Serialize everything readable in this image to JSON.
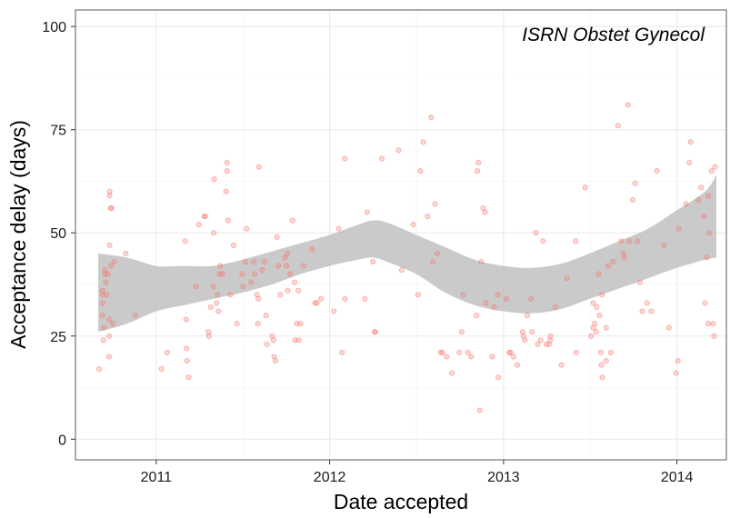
{
  "chart_data": {
    "type": "scatter",
    "title": "",
    "annotation": "ISRN Obstet Gynecol",
    "xlabel": "Date accepted",
    "ylabel": "Acceptance delay (days)",
    "xlim": [
      "2010-07-15",
      "2014-04-15"
    ],
    "ylim": [
      -5,
      104
    ],
    "x_ticks": [
      "2011-01-01",
      "2012-01-01",
      "2013-01-01",
      "2014-01-01"
    ],
    "x_tick_labels": [
      "2011",
      "2012",
      "2013",
      "2014"
    ],
    "y_ticks": [
      0,
      25,
      50,
      75,
      100
    ],
    "y_tick_labels": [
      "0",
      "25",
      "50",
      "75",
      "100"
    ],
    "grid": true,
    "colors": {
      "points": "#f8766d",
      "band": "#c0c0c0",
      "panel_border": "#7f7f7f",
      "grid": "#ebebeb"
    },
    "series": [
      {
        "points": [
          [
            "2010-09-03",
            17
          ],
          [
            "2010-09-10",
            36
          ],
          [
            "2010-09-10",
            35
          ],
          [
            "2010-09-10",
            33
          ],
          [
            "2010-09-10",
            30
          ],
          [
            "2010-09-12",
            24
          ],
          [
            "2010-09-13",
            27
          ],
          [
            "2010-09-15",
            40
          ],
          [
            "2010-09-15",
            41
          ],
          [
            "2010-09-17",
            38
          ],
          [
            "2010-09-19",
            35
          ],
          [
            "2010-09-21",
            40
          ],
          [
            "2010-09-25",
            60
          ],
          [
            "2010-09-25",
            59
          ],
          [
            "2010-09-25",
            47
          ],
          [
            "2010-09-27",
            56
          ],
          [
            "2010-09-28",
            42
          ],
          [
            "2010-09-29",
            56
          ],
          [
            "2010-09-24",
            29
          ],
          [
            "2010-09-24",
            25
          ],
          [
            "2010-09-24",
            20
          ],
          [
            "2010-10-05",
            43
          ],
          [
            "2010-10-02",
            28
          ],
          [
            "2010-10-29",
            45
          ],
          [
            "2010-11-18",
            30
          ],
          [
            "2011-01-12",
            17
          ],
          [
            "2011-01-24",
            21
          ],
          [
            "2011-03-03",
            48
          ],
          [
            "2011-03-05",
            29
          ],
          [
            "2011-03-06",
            22
          ],
          [
            "2011-03-07",
            19
          ],
          [
            "2011-03-10",
            15
          ],
          [
            "2011-03-26",
            37
          ],
          [
            "2011-04-01",
            52
          ],
          [
            "2011-04-12",
            54
          ],
          [
            "2011-04-14",
            54
          ],
          [
            "2011-04-21",
            26
          ],
          [
            "2011-04-22",
            25
          ],
          [
            "2011-04-26",
            32
          ],
          [
            "2011-05-01",
            37
          ],
          [
            "2011-05-02",
            50
          ],
          [
            "2011-05-03",
            63
          ],
          [
            "2011-05-08",
            33
          ],
          [
            "2011-05-12",
            31
          ],
          [
            "2011-05-10",
            35
          ],
          [
            "2011-05-14",
            40
          ],
          [
            "2011-05-16",
            42
          ],
          [
            "2011-05-20",
            40
          ],
          [
            "2011-05-28",
            60
          ],
          [
            "2011-05-30",
            65
          ],
          [
            "2011-05-30",
            67
          ],
          [
            "2011-06-01",
            53
          ],
          [
            "2011-06-06",
            35
          ],
          [
            "2011-06-13",
            47
          ],
          [
            "2011-06-20",
            28
          ],
          [
            "2011-07-01",
            40
          ],
          [
            "2011-07-03",
            37
          ],
          [
            "2011-07-08",
            43
          ],
          [
            "2011-07-10",
            51
          ],
          [
            "2011-07-20",
            38
          ],
          [
            "2011-07-25",
            43
          ],
          [
            "2011-07-27",
            40
          ],
          [
            "2011-08-01",
            35
          ],
          [
            "2011-08-04",
            34
          ],
          [
            "2011-08-03",
            28
          ],
          [
            "2011-08-05",
            66
          ],
          [
            "2011-08-12",
            41
          ],
          [
            "2011-08-17",
            43
          ],
          [
            "2011-08-20",
            30
          ],
          [
            "2011-08-22",
            23
          ],
          [
            "2011-09-02",
            25
          ],
          [
            "2011-09-05",
            24
          ],
          [
            "2011-09-06",
            20
          ],
          [
            "2011-09-09",
            19
          ],
          [
            "2011-09-12",
            49
          ],
          [
            "2011-09-15",
            42
          ],
          [
            "2011-09-19",
            35
          ],
          [
            "2011-09-29",
            44
          ],
          [
            "2011-10-02",
            42
          ],
          [
            "2011-10-04",
            45
          ],
          [
            "2011-10-05",
            36
          ],
          [
            "2011-10-10",
            40
          ],
          [
            "2011-10-15",
            53
          ],
          [
            "2011-10-19",
            38
          ],
          [
            "2011-10-20",
            24
          ],
          [
            "2011-10-24",
            28
          ],
          [
            "2011-10-27",
            36
          ],
          [
            "2011-10-28",
            24
          ],
          [
            "2011-11-01",
            28
          ],
          [
            "2011-11-07",
            42
          ],
          [
            "2011-11-25",
            46
          ],
          [
            "2011-12-01",
            33
          ],
          [
            "2011-12-05",
            33
          ],
          [
            "2011-12-14",
            34
          ],
          [
            "2012-01-10",
            31
          ],
          [
            "2012-01-20",
            51
          ],
          [
            "2012-01-27",
            21
          ],
          [
            "2012-02-02",
            68
          ],
          [
            "2012-02-02",
            34
          ],
          [
            "2012-03-15",
            34
          ],
          [
            "2012-03-20",
            55
          ],
          [
            "2012-04-01",
            43
          ],
          [
            "2012-04-05",
            26
          ],
          [
            "2012-04-06",
            26
          ],
          [
            "2012-04-20",
            68
          ],
          [
            "2012-05-25",
            70
          ],
          [
            "2012-06-01",
            41
          ],
          [
            "2012-06-25",
            52
          ],
          [
            "2012-07-05",
            35
          ],
          [
            "2012-07-10",
            65
          ],
          [
            "2012-07-16",
            72
          ],
          [
            "2012-07-25",
            54
          ],
          [
            "2012-08-02",
            78
          ],
          [
            "2012-08-05",
            43
          ],
          [
            "2012-08-10",
            57
          ],
          [
            "2012-08-15",
            45
          ],
          [
            "2012-08-22",
            21
          ],
          [
            "2012-08-25",
            21
          ],
          [
            "2012-09-03",
            20
          ],
          [
            "2012-09-14",
            16
          ],
          [
            "2012-09-30",
            21
          ],
          [
            "2012-10-05",
            26
          ],
          [
            "2012-10-08",
            35
          ],
          [
            "2012-10-18",
            21
          ],
          [
            "2012-10-25",
            20
          ],
          [
            "2012-11-05",
            30
          ],
          [
            "2012-11-07",
            65
          ],
          [
            "2012-11-09",
            67
          ],
          [
            "2012-11-12",
            7
          ],
          [
            "2012-11-15",
            43
          ],
          [
            "2012-11-19",
            56
          ],
          [
            "2012-11-23",
            55
          ],
          [
            "2012-11-25",
            33
          ],
          [
            "2012-12-08",
            20
          ],
          [
            "2012-12-12",
            32
          ],
          [
            "2012-12-20",
            35
          ],
          [
            "2012-12-21",
            15
          ],
          [
            "2013-01-07",
            34
          ],
          [
            "2013-01-13",
            21
          ],
          [
            "2013-01-16",
            21
          ],
          [
            "2013-01-22",
            20
          ],
          [
            "2013-01-30",
            18
          ],
          [
            "2013-02-10",
            26
          ],
          [
            "2013-02-12",
            25
          ],
          [
            "2013-02-15",
            24
          ],
          [
            "2013-02-20",
            30
          ],
          [
            "2013-02-28",
            34
          ],
          [
            "2013-03-02",
            26
          ],
          [
            "2013-03-10",
            50
          ],
          [
            "2013-03-14",
            23
          ],
          [
            "2013-03-20",
            24
          ],
          [
            "2013-03-25",
            48
          ],
          [
            "2013-04-01",
            23
          ],
          [
            "2013-04-07",
            23
          ],
          [
            "2013-04-09",
            24
          ],
          [
            "2013-04-10",
            25
          ],
          [
            "2013-04-20",
            32
          ],
          [
            "2013-05-03",
            18
          ],
          [
            "2013-05-15",
            39
          ],
          [
            "2013-06-02",
            48
          ],
          [
            "2013-06-03",
            21
          ],
          [
            "2013-06-22",
            61
          ],
          [
            "2013-07-04",
            25
          ],
          [
            "2013-07-09",
            27
          ],
          [
            "2013-07-09",
            33
          ],
          [
            "2013-07-12",
            28
          ],
          [
            "2013-07-15",
            26
          ],
          [
            "2013-07-16",
            32
          ],
          [
            "2013-07-20",
            40
          ],
          [
            "2013-07-22",
            30
          ],
          [
            "2013-07-25",
            21
          ],
          [
            "2013-07-26",
            18
          ],
          [
            "2013-07-27",
            35
          ],
          [
            "2013-07-28",
            15
          ],
          [
            "2013-08-05",
            27
          ],
          [
            "2013-08-05",
            19
          ],
          [
            "2013-08-09",
            42
          ],
          [
            "2013-08-15",
            21
          ],
          [
            "2013-08-20",
            43
          ],
          [
            "2013-08-30",
            76
          ],
          [
            "2013-09-06",
            48
          ],
          [
            "2013-09-10",
            45
          ],
          [
            "2013-09-12",
            44
          ],
          [
            "2013-09-20",
            81
          ],
          [
            "2013-09-23",
            48
          ],
          [
            "2013-09-30",
            58
          ],
          [
            "2013-10-05",
            62
          ],
          [
            "2013-10-10",
            48
          ],
          [
            "2013-10-15",
            38
          ],
          [
            "2013-10-20",
            31
          ],
          [
            "2013-10-30",
            33
          ],
          [
            "2013-11-08",
            31
          ],
          [
            "2013-11-20",
            65
          ],
          [
            "2013-12-05",
            47
          ],
          [
            "2013-12-15",
            27
          ],
          [
            "2013-12-30",
            16
          ],
          [
            "2014-01-03",
            19
          ],
          [
            "2014-01-05",
            51
          ],
          [
            "2014-01-20",
            57
          ],
          [
            "2014-01-27",
            67
          ],
          [
            "2014-01-30",
            72
          ],
          [
            "2014-02-15",
            58
          ],
          [
            "2014-02-21",
            61
          ],
          [
            "2014-02-27",
            54
          ],
          [
            "2014-03-01",
            33
          ],
          [
            "2014-03-05",
            44
          ],
          [
            "2014-03-08",
            28
          ],
          [
            "2014-03-08",
            59
          ],
          [
            "2014-03-10",
            50
          ],
          [
            "2014-03-15",
            65
          ],
          [
            "2014-03-18",
            28
          ],
          [
            "2014-03-20",
            25
          ],
          [
            "2014-03-22",
            66
          ]
        ]
      }
    ],
    "smooth_band": [
      [
        "2010-09-01",
        26,
        45
      ],
      [
        "2010-11-01",
        28,
        44
      ],
      [
        "2011-01-01",
        31,
        42
      ],
      [
        "2011-03-01",
        32.5,
        42
      ],
      [
        "2011-05-01",
        34,
        42
      ],
      [
        "2011-07-01",
        35.5,
        43.5
      ],
      [
        "2011-09-01",
        37.5,
        45.5
      ],
      [
        "2011-11-01",
        40,
        47.5
      ],
      [
        "2012-01-01",
        42,
        49.5
      ],
      [
        "2012-03-01",
        43.5,
        52
      ],
      [
        "2012-04-01",
        44,
        53
      ],
      [
        "2012-05-01",
        43,
        52.5
      ],
      [
        "2012-07-01",
        40,
        49.5
      ],
      [
        "2012-09-01",
        35.5,
        46.5
      ],
      [
        "2012-11-01",
        32.5,
        43.5
      ],
      [
        "2013-01-01",
        31,
        42
      ],
      [
        "2013-03-01",
        30.5,
        41.5
      ],
      [
        "2013-05-01",
        31.5,
        42.5
      ],
      [
        "2013-07-01",
        34,
        45
      ],
      [
        "2013-09-01",
        36.5,
        48
      ],
      [
        "2013-11-01",
        39,
        51
      ],
      [
        "2014-01-01",
        41.5,
        55.5
      ],
      [
        "2014-03-01",
        43.5,
        60
      ],
      [
        "2014-03-25",
        44,
        64
      ]
    ]
  }
}
